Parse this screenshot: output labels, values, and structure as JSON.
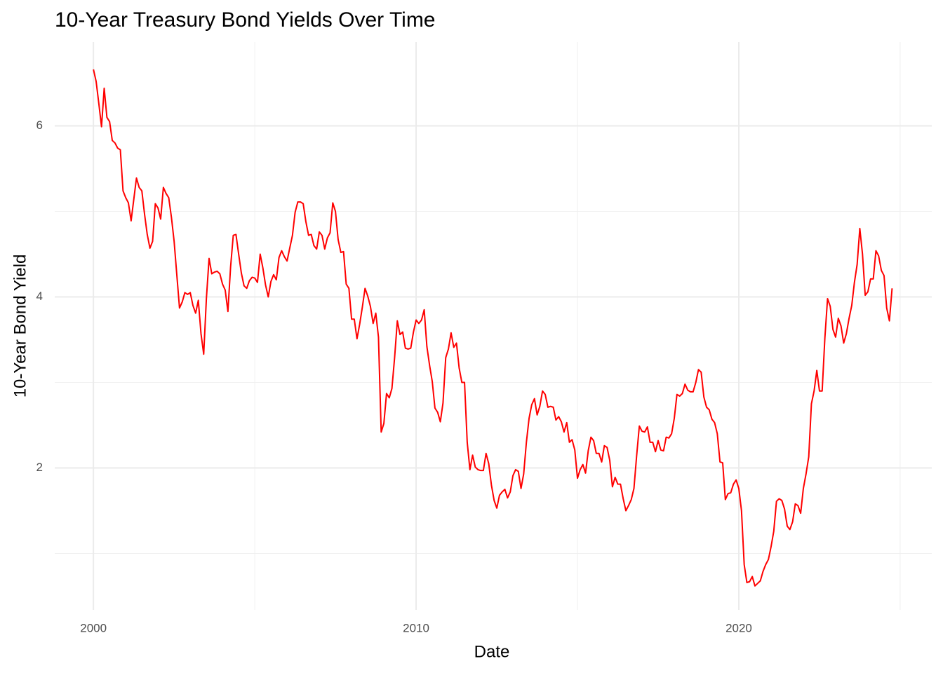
{
  "chart_data": {
    "type": "line",
    "title": "10-Year Treasury Bond Yields Over Time",
    "x_label": "Date",
    "y_label": "10-Year Bond Yield",
    "x": [
      2000,
      2000.083,
      2000.167,
      2000.25,
      2000.333,
      2000.417,
      2000.5,
      2000.583,
      2000.667,
      2000.75,
      2000.833,
      2000.917,
      2001,
      2001.083,
      2001.167,
      2001.25,
      2001.333,
      2001.417,
      2001.5,
      2001.583,
      2001.667,
      2001.75,
      2001.833,
      2001.917,
      2002,
      2002.083,
      2002.167,
      2002.25,
      2002.333,
      2002.417,
      2002.5,
      2002.583,
      2002.667,
      2002.75,
      2002.833,
      2002.917,
      2003,
      2003.083,
      2003.167,
      2003.25,
      2003.333,
      2003.417,
      2003.5,
      2003.583,
      2003.667,
      2003.75,
      2003.833,
      2003.917,
      2004,
      2004.083,
      2004.167,
      2004.25,
      2004.333,
      2004.417,
      2004.5,
      2004.583,
      2004.667,
      2004.75,
      2004.833,
      2004.917,
      2005,
      2005.083,
      2005.167,
      2005.25,
      2005.333,
      2005.417,
      2005.5,
      2005.583,
      2005.667,
      2005.75,
      2005.833,
      2005.917,
      2006,
      2006.083,
      2006.167,
      2006.25,
      2006.333,
      2006.417,
      2006.5,
      2006.583,
      2006.667,
      2006.75,
      2006.833,
      2006.917,
      2007,
      2007.083,
      2007.167,
      2007.25,
      2007.333,
      2007.417,
      2007.5,
      2007.583,
      2007.667,
      2007.75,
      2007.833,
      2007.917,
      2008,
      2008.083,
      2008.167,
      2008.25,
      2008.333,
      2008.417,
      2008.5,
      2008.583,
      2008.667,
      2008.75,
      2008.833,
      2008.917,
      2009,
      2009.083,
      2009.167,
      2009.25,
      2009.333,
      2009.417,
      2009.5,
      2009.583,
      2009.667,
      2009.75,
      2009.833,
      2009.917,
      2010,
      2010.083,
      2010.167,
      2010.25,
      2010.333,
      2010.417,
      2010.5,
      2010.583,
      2010.667,
      2010.75,
      2010.833,
      2010.917,
      2011,
      2011.083,
      2011.167,
      2011.25,
      2011.333,
      2011.417,
      2011.5,
      2011.583,
      2011.667,
      2011.75,
      2011.833,
      2011.917,
      2012,
      2012.083,
      2012.167,
      2012.25,
      2012.333,
      2012.417,
      2012.5,
      2012.583,
      2012.667,
      2012.75,
      2012.833,
      2012.917,
      2013,
      2013.083,
      2013.167,
      2013.25,
      2013.333,
      2013.417,
      2013.5,
      2013.583,
      2013.667,
      2013.75,
      2013.833,
      2013.917,
      2014,
      2014.083,
      2014.167,
      2014.25,
      2014.333,
      2014.417,
      2014.5,
      2014.583,
      2014.667,
      2014.75,
      2014.833,
      2014.917,
      2015,
      2015.083,
      2015.167,
      2015.25,
      2015.333,
      2015.417,
      2015.5,
      2015.583,
      2015.667,
      2015.75,
      2015.833,
      2015.917,
      2016,
      2016.083,
      2016.167,
      2016.25,
      2016.333,
      2016.417,
      2016.5,
      2016.583,
      2016.667,
      2016.75,
      2016.833,
      2016.917,
      2017,
      2017.083,
      2017.167,
      2017.25,
      2017.333,
      2017.417,
      2017.5,
      2017.583,
      2017.667,
      2017.75,
      2017.833,
      2017.917,
      2018,
      2018.083,
      2018.167,
      2018.25,
      2018.333,
      2018.417,
      2018.5,
      2018.583,
      2018.667,
      2018.75,
      2018.833,
      2018.917,
      2019,
      2019.083,
      2019.167,
      2019.25,
      2019.333,
      2019.417,
      2019.5,
      2019.583,
      2019.667,
      2019.75,
      2019.833,
      2019.917,
      2020,
      2020.083,
      2020.167,
      2020.25,
      2020.333,
      2020.417,
      2020.5,
      2020.583,
      2020.667,
      2020.75,
      2020.833,
      2020.917,
      2021,
      2021.083,
      2021.167,
      2021.25,
      2021.333,
      2021.417,
      2021.5,
      2021.583,
      2021.667,
      2021.75,
      2021.833,
      2021.917,
      2022,
      2022.083,
      2022.167,
      2022.25,
      2022.333,
      2022.417,
      2022.5,
      2022.583,
      2022.667,
      2022.75,
      2022.833,
      2022.917,
      2023,
      2023.083,
      2023.167,
      2023.25,
      2023.333,
      2023.417,
      2023.5,
      2023.583,
      2023.667,
      2023.75,
      2023.833,
      2023.917,
      2024,
      2024.083,
      2024.167,
      2024.25,
      2024.333,
      2024.417,
      2024.5,
      2024.583,
      2024.667,
      2024.75
    ],
    "values": [
      6.66,
      6.52,
      6.26,
      5.99,
      6.44,
      6.1,
      6.05,
      5.83,
      5.8,
      5.74,
      5.72,
      5.24,
      5.16,
      5.1,
      4.89,
      5.14,
      5.39,
      5.28,
      5.24,
      4.97,
      4.73,
      4.57,
      4.65,
      5.09,
      5.04,
      4.91,
      5.28,
      5.21,
      5.16,
      4.93,
      4.65,
      4.26,
      3.87,
      3.94,
      4.05,
      4.03,
      4.05,
      3.9,
      3.81,
      3.96,
      3.57,
      3.33,
      3.98,
      4.45,
      4.27,
      4.29,
      4.3,
      4.27,
      4.15,
      4.08,
      3.83,
      4.35,
      4.72,
      4.73,
      4.5,
      4.28,
      4.13,
      4.1,
      4.19,
      4.23,
      4.22,
      4.17,
      4.5,
      4.34,
      4.14,
      4.0,
      4.18,
      4.26,
      4.2,
      4.46,
      4.54,
      4.47,
      4.42,
      4.57,
      4.72,
      4.99,
      5.11,
      5.11,
      5.09,
      4.88,
      4.72,
      4.73,
      4.6,
      4.56,
      4.76,
      4.72,
      4.56,
      4.69,
      4.75,
      5.1,
      5.0,
      4.67,
      4.52,
      4.53,
      4.15,
      4.1,
      3.74,
      3.74,
      3.51,
      3.68,
      3.88,
      4.1,
      4.01,
      3.89,
      3.69,
      3.81,
      3.53,
      2.42,
      2.52,
      2.87,
      2.82,
      2.93,
      3.29,
      3.72,
      3.56,
      3.59,
      3.4,
      3.39,
      3.4,
      3.59,
      3.73,
      3.69,
      3.73,
      3.85,
      3.42,
      3.2,
      3.01,
      2.7,
      2.65,
      2.54,
      2.76,
      3.29,
      3.39,
      3.58,
      3.41,
      3.46,
      3.17,
      3.0,
      3.0,
      2.3,
      1.98,
      2.15,
      2.01,
      1.98,
      1.97,
      1.97,
      2.17,
      2.05,
      1.8,
      1.62,
      1.53,
      1.68,
      1.72,
      1.75,
      1.65,
      1.72,
      1.91,
      1.98,
      1.96,
      1.76,
      1.93,
      2.3,
      2.58,
      2.74,
      2.81,
      2.62,
      2.72,
      2.9,
      2.86,
      2.71,
      2.72,
      2.71,
      2.56,
      2.6,
      2.54,
      2.42,
      2.53,
      2.3,
      2.33,
      2.21,
      1.88,
      1.98,
      2.04,
      1.94,
      2.2,
      2.36,
      2.32,
      2.17,
      2.17,
      2.07,
      2.26,
      2.24,
      2.09,
      1.78,
      1.89,
      1.81,
      1.81,
      1.64,
      1.5,
      1.56,
      1.63,
      1.76,
      2.14,
      2.49,
      2.43,
      2.42,
      2.48,
      2.3,
      2.3,
      2.19,
      2.32,
      2.21,
      2.2,
      2.36,
      2.35,
      2.4,
      2.58,
      2.86,
      2.84,
      2.87,
      2.98,
      2.91,
      2.89,
      2.89,
      3.0,
      3.15,
      3.12,
      2.83,
      2.71,
      2.68,
      2.57,
      2.53,
      2.4,
      2.07,
      2.06,
      1.63,
      1.7,
      1.71,
      1.81,
      1.86,
      1.76,
      1.5,
      0.87,
      0.66,
      0.67,
      0.73,
      0.62,
      0.65,
      0.68,
      0.79,
      0.87,
      0.93,
      1.08,
      1.26,
      1.61,
      1.64,
      1.62,
      1.52,
      1.32,
      1.28,
      1.37,
      1.58,
      1.56,
      1.47,
      1.76,
      1.93,
      2.13,
      2.75,
      2.9,
      3.14,
      2.9,
      2.9,
      3.52,
      3.98,
      3.89,
      3.62,
      3.53,
      3.75,
      3.66,
      3.46,
      3.57,
      3.75,
      3.9,
      4.17,
      4.38,
      4.8,
      4.5,
      4.02,
      4.06,
      4.21,
      4.21,
      4.54,
      4.48,
      4.31,
      4.25,
      3.87,
      3.72,
      4.1
    ],
    "color": "#ff0000",
    "xlim": [
      1998.8,
      2025.98
    ],
    "xticks": [
      2000,
      2010,
      2020
    ],
    "x_minor_grid": [
      2005,
      2015,
      2025
    ],
    "ylim": [
      0.34,
      6.98
    ],
    "yticks": [
      2,
      4,
      6
    ],
    "y_minor_grid": [
      1,
      3,
      5
    ],
    "grid": true
  }
}
